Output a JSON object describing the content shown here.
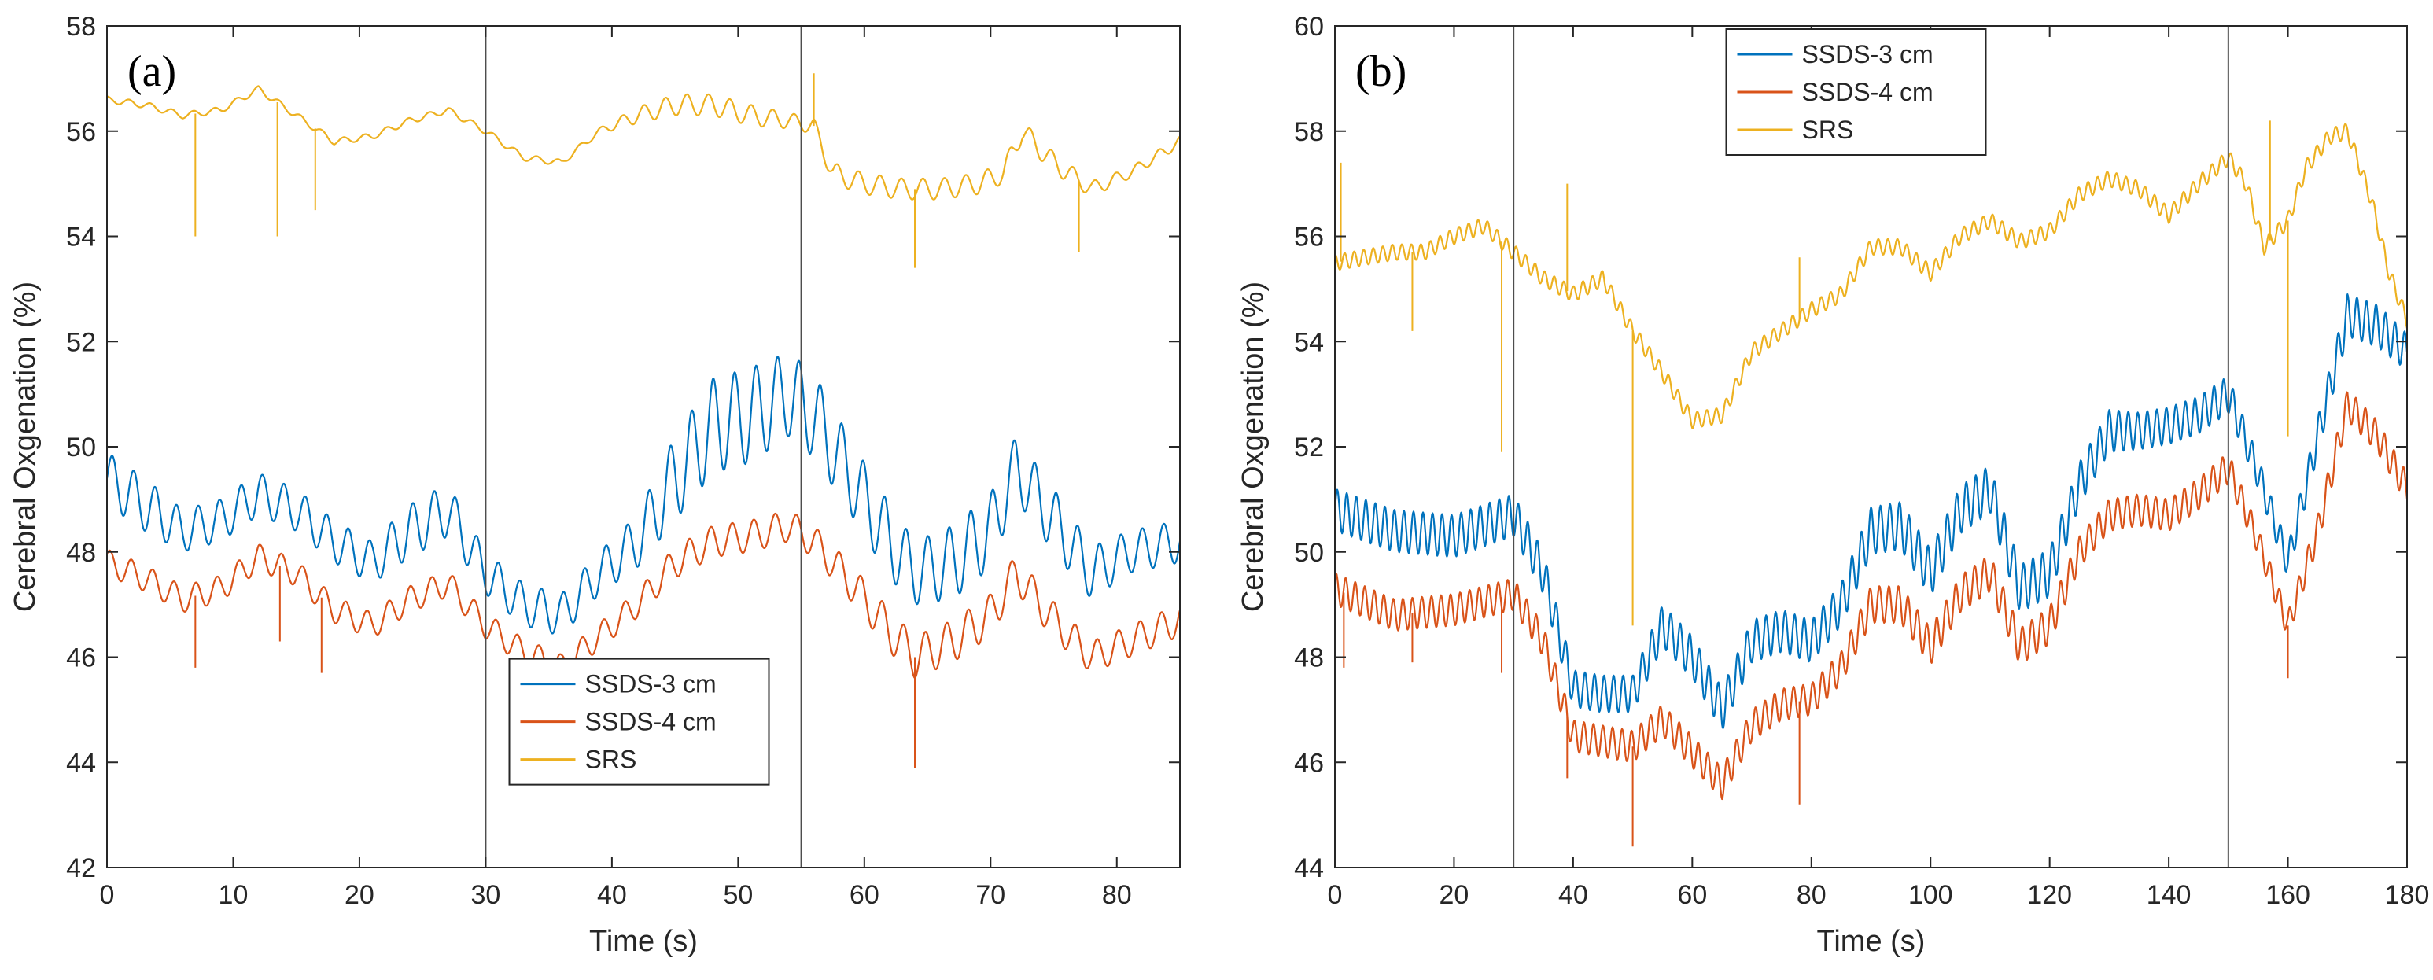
{
  "chart_data": [
    {
      "type": "line",
      "panel_label": "(a)",
      "xlabel": "Time (s)",
      "ylabel": "Cerebral Oxgenation (%)",
      "xlim": [
        0,
        85
      ],
      "ylim": [
        42,
        58
      ],
      "xticks": [
        0,
        10,
        20,
        30,
        40,
        50,
        60,
        70,
        80
      ],
      "yticks": [
        42,
        44,
        46,
        48,
        50,
        52,
        54,
        56,
        58
      ],
      "vlines": [
        30,
        55
      ],
      "legend_position": "bottom-center",
      "oscillation_period": 1.7,
      "series": [
        {
          "name": "SSDS-3 cm",
          "color": "#0072BD",
          "x": [
            0,
            3,
            6,
            9,
            12,
            15,
            18,
            21,
            24,
            27,
            30,
            33,
            36,
            39,
            42,
            45,
            48,
            51,
            54,
            56,
            59,
            62,
            64,
            67,
            70,
            72,
            75,
            78,
            81,
            85
          ],
          "y": [
            49.4,
            48.9,
            48.4,
            48.6,
            49.1,
            48.8,
            48.2,
            47.8,
            48.4,
            48.8,
            47.6,
            47.0,
            46.8,
            47.6,
            48.2,
            49.4,
            50.4,
            50.6,
            51.0,
            50.6,
            49.4,
            48.2,
            47.6,
            47.8,
            48.4,
            49.6,
            48.6,
            47.6,
            48.0,
            48.2
          ],
          "amplitude": [
            0.5,
            0.5,
            0.4,
            0.4,
            0.4,
            0.4,
            0.4,
            0.4,
            0.5,
            0.5,
            0.4,
            0.4,
            0.4,
            0.4,
            0.5,
            0.8,
            0.9,
            0.9,
            0.8,
            0.8,
            0.7,
            0.7,
            0.6,
            0.7,
            0.7,
            0.6,
            0.6,
            0.5,
            0.4,
            0.4
          ]
        },
        {
          "name": "SSDS-4 cm",
          "color": "#D95319",
          "x": [
            0,
            3,
            6,
            9,
            12,
            15,
            18,
            21,
            24,
            27,
            30,
            33,
            36,
            39,
            42,
            45,
            48,
            51,
            54,
            56,
            59,
            62,
            64,
            67,
            70,
            72,
            75,
            78,
            81,
            85
          ],
          "y": [
            47.8,
            47.5,
            47.1,
            47.3,
            47.9,
            47.6,
            46.9,
            46.6,
            47.1,
            47.4,
            46.6,
            46.1,
            45.8,
            46.4,
            47.0,
            47.8,
            48.2,
            48.3,
            48.5,
            48.2,
            47.4,
            46.5,
            46.0,
            46.3,
            46.8,
            47.6,
            46.7,
            46.0,
            46.3,
            46.7
          ],
          "amplitude": [
            0.25,
            0.25,
            0.25,
            0.25,
            0.25,
            0.25,
            0.25,
            0.25,
            0.25,
            0.25,
            0.25,
            0.25,
            0.25,
            0.25,
            0.25,
            0.3,
            0.3,
            0.3,
            0.3,
            0.3,
            0.35,
            0.4,
            0.4,
            0.4,
            0.4,
            0.35,
            0.35,
            0.3,
            0.3,
            0.3
          ],
          "spikes": [
            [
              7,
              45.8
            ],
            [
              13.7,
              46.3
            ],
            [
              17,
              45.7
            ],
            [
              64,
              43.9
            ]
          ]
        },
        {
          "name": "SRS",
          "color": "#EDB120",
          "x": [
            0,
            3,
            6,
            9,
            12,
            15,
            18,
            21,
            24,
            27,
            30,
            33,
            36,
            39,
            42,
            45,
            48,
            51,
            54,
            56,
            57.5,
            60,
            63,
            66,
            69,
            71,
            72.5,
            75,
            78,
            81,
            85
          ],
          "y": [
            56.6,
            56.5,
            56.3,
            56.4,
            56.8,
            56.3,
            55.8,
            55.9,
            56.2,
            56.4,
            56.0,
            55.5,
            55.4,
            56.0,
            56.3,
            56.5,
            56.5,
            56.3,
            56.2,
            56.1,
            55.2,
            55.0,
            54.9,
            54.9,
            55.0,
            55.2,
            56.0,
            55.4,
            54.9,
            55.2,
            55.8
          ],
          "amplitude": [
            0.06,
            0.06,
            0.06,
            0.06,
            0.06,
            0.06,
            0.06,
            0.06,
            0.06,
            0.06,
            0.06,
            0.06,
            0.06,
            0.06,
            0.15,
            0.2,
            0.2,
            0.2,
            0.15,
            0.15,
            0.2,
            0.2,
            0.2,
            0.2,
            0.2,
            0.2,
            0.2,
            0.2,
            0.15,
            0.1,
            0.1
          ],
          "spikes": [
            [
              7,
              54.0
            ],
            [
              13.5,
              54.0
            ],
            [
              16.5,
              54.5
            ],
            [
              56,
              57.1
            ],
            [
              64,
              53.4
            ],
            [
              77,
              53.7
            ]
          ]
        }
      ]
    },
    {
      "type": "line",
      "panel_label": "(b)",
      "xlabel": "Time (s)",
      "ylabel": "Cerebral Oxgenation (%)",
      "xlim": [
        0,
        180
      ],
      "ylim": [
        44,
        60
      ],
      "xticks": [
        0,
        20,
        40,
        60,
        80,
        100,
        120,
        140,
        160,
        180
      ],
      "yticks": [
        44,
        46,
        48,
        50,
        52,
        54,
        56,
        58,
        60
      ],
      "vlines": [
        30,
        150
      ],
      "legend_position": "top-left",
      "oscillation_period": 1.6,
      "series": [
        {
          "name": "SSDS-3 cm",
          "color": "#0072BD",
          "x": [
            0,
            10,
            20,
            30,
            35,
            40,
            45,
            50,
            55,
            60,
            65,
            70,
            75,
            80,
            85,
            90,
            95,
            100,
            105,
            110,
            115,
            120,
            125,
            130,
            135,
            140,
            145,
            150,
            155,
            160,
            165,
            170,
            175,
            180
          ],
          "y": [
            50.8,
            50.4,
            50.3,
            50.7,
            49.6,
            47.4,
            47.3,
            47.3,
            48.6,
            48.0,
            47.0,
            48.3,
            48.5,
            48.3,
            49.0,
            50.4,
            50.5,
            49.6,
            50.8,
            51.2,
            49.3,
            49.6,
            51.3,
            52.3,
            52.3,
            52.4,
            52.6,
            53.0,
            51.5,
            49.8,
            52.2,
            54.5,
            54.3,
            53.8
          ],
          "amplitude": [
            0.4,
            0.4,
            0.4,
            0.4,
            0.4,
            0.35,
            0.35,
            0.35,
            0.4,
            0.4,
            0.4,
            0.4,
            0.4,
            0.4,
            0.4,
            0.45,
            0.45,
            0.45,
            0.45,
            0.45,
            0.45,
            0.45,
            0.4,
            0.4,
            0.35,
            0.35,
            0.35,
            0.35,
            0.3,
            0.3,
            0.35,
            0.4,
            0.4,
            0.35
          ]
        },
        {
          "name": "SSDS-4 cm",
          "color": "#D95319",
          "x": [
            0,
            10,
            20,
            30,
            35,
            40,
            45,
            50,
            55,
            60,
            65,
            70,
            75,
            80,
            85,
            90,
            95,
            100,
            105,
            110,
            115,
            120,
            125,
            130,
            135,
            140,
            145,
            150,
            155,
            160,
            165,
            170,
            175,
            180
          ],
          "y": [
            49.3,
            48.8,
            48.9,
            49.2,
            48.3,
            46.5,
            46.4,
            46.3,
            46.8,
            46.2,
            45.6,
            46.7,
            47.1,
            47.2,
            47.8,
            49.0,
            49.0,
            48.2,
            49.2,
            49.6,
            48.2,
            48.6,
            50.0,
            50.7,
            50.8,
            50.7,
            51.1,
            51.6,
            50.2,
            48.6,
            50.4,
            52.8,
            52.2,
            51.2
          ],
          "amplitude": [
            0.3,
            0.3,
            0.3,
            0.3,
            0.3,
            0.3,
            0.3,
            0.3,
            0.3,
            0.3,
            0.3,
            0.3,
            0.3,
            0.3,
            0.3,
            0.35,
            0.35,
            0.35,
            0.35,
            0.35,
            0.35,
            0.35,
            0.3,
            0.3,
            0.3,
            0.3,
            0.3,
            0.3,
            0.25,
            0.25,
            0.3,
            0.3,
            0.3,
            0.3
          ],
          "spikes": [
            [
              1.5,
              47.8
            ],
            [
              13,
              47.9
            ],
            [
              28,
              47.7
            ],
            [
              39,
              45.7
            ],
            [
              50,
              44.4
            ],
            [
              78,
              45.2
            ],
            [
              160,
              47.6
            ]
          ]
        },
        {
          "name": "SRS",
          "color": "#EDB120",
          "x": [
            0,
            5,
            10,
            15,
            20,
            25,
            30,
            35,
            40,
            45,
            50,
            55,
            60,
            65,
            70,
            75,
            80,
            85,
            90,
            95,
            100,
            105,
            110,
            115,
            120,
            125,
            130,
            135,
            140,
            145,
            150,
            153,
            156,
            160,
            163,
            167,
            170,
            174,
            177,
            180
          ],
          "y": [
            55.5,
            55.6,
            55.7,
            55.7,
            56.0,
            56.2,
            55.7,
            55.2,
            54.9,
            55.2,
            54.2,
            53.4,
            52.5,
            52.6,
            53.8,
            54.2,
            54.6,
            54.9,
            55.8,
            55.8,
            55.3,
            56.0,
            56.3,
            55.9,
            56.1,
            56.8,
            57.1,
            56.9,
            56.4,
            57.0,
            57.5,
            57.0,
            55.8,
            56.3,
            57.3,
            57.9,
            58.0,
            56.7,
            55.3,
            54.4
          ],
          "amplitude": [
            0.15,
            0.15,
            0.15,
            0.15,
            0.15,
            0.15,
            0.15,
            0.15,
            0.15,
            0.15,
            0.15,
            0.15,
            0.15,
            0.15,
            0.15,
            0.15,
            0.15,
            0.15,
            0.15,
            0.15,
            0.15,
            0.15,
            0.15,
            0.15,
            0.15,
            0.15,
            0.15,
            0.15,
            0.15,
            0.15,
            0.15,
            0.15,
            0.15,
            0.15,
            0.15,
            0.15,
            0.15,
            0.15,
            0.15,
            0.15
          ],
          "spikes": [
            [
              1,
              57.4
            ],
            [
              13,
              54.2
            ],
            [
              28,
              51.9
            ],
            [
              39,
              57.0
            ],
            [
              50,
              48.6
            ],
            [
              78,
              55.6
            ],
            [
              157,
              58.2
            ],
            [
              160,
              52.2
            ]
          ]
        }
      ]
    }
  ]
}
